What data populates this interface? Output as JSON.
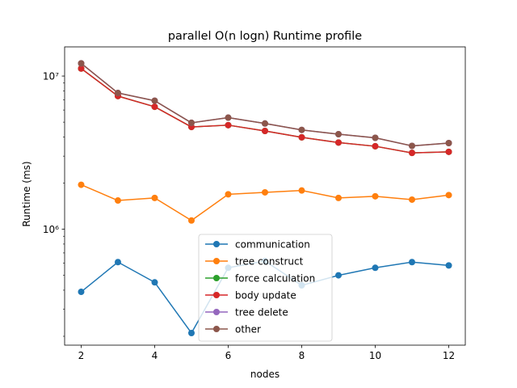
{
  "chart_data": {
    "type": "line",
    "title": "parallel O(n logn) Runtime profile",
    "xlabel": "nodes",
    "ylabel": "Runtime (ms)",
    "yscale": "log",
    "grid": false,
    "legend_position": "lower-center",
    "xlim": [
      1.55,
      12.45
    ],
    "ylim": [
      175000,
      15500000
    ],
    "xticks": [
      2,
      4,
      6,
      8,
      10,
      12
    ],
    "xtick_labels": [
      "2",
      "4",
      "6",
      "8",
      "10",
      "12"
    ],
    "yticks": [
      1000000,
      10000000
    ],
    "ytick_labels": [
      "10⁶",
      "10⁷"
    ],
    "x": [
      2,
      3,
      4,
      5,
      6,
      7,
      8,
      9,
      10,
      11,
      12
    ],
    "series": [
      {
        "name": "communication",
        "color": "#1f77b4",
        "values": [
          390000,
          610000,
          450000,
          210000,
          560000,
          620000,
          430000,
          500000,
          560000,
          610000,
          580000
        ]
      },
      {
        "name": "tree construct",
        "color": "#ff7f0e",
        "values": [
          1950000,
          1540000,
          1600000,
          1140000,
          1690000,
          1740000,
          1790000,
          1600000,
          1640000,
          1560000,
          1670000
        ]
      },
      {
        "name": "force calculation",
        "color": "#2ca02c",
        "values": [
          11200000,
          7400000,
          6300000,
          4650000,
          4780000,
          4380000,
          3980000,
          3680000,
          3480000,
          3150000,
          3200000
        ]
      },
      {
        "name": "body update",
        "color": "#d62728",
        "values": [
          11200000,
          7400000,
          6300000,
          4650000,
          4780000,
          4380000,
          3980000,
          3680000,
          3480000,
          3150000,
          3200000
        ]
      },
      {
        "name": "tree delete",
        "color": "#9467bd",
        "values": [
          12100000,
          7750000,
          6900000,
          4950000,
          5350000,
          4900000,
          4450000,
          4170000,
          3950000,
          3500000,
          3650000
        ]
      },
      {
        "name": "other",
        "color": "#8c564b",
        "values": [
          12100000,
          7750000,
          6900000,
          4950000,
          5350000,
          4900000,
          4450000,
          4170000,
          3950000,
          3500000,
          3650000
        ]
      }
    ]
  }
}
